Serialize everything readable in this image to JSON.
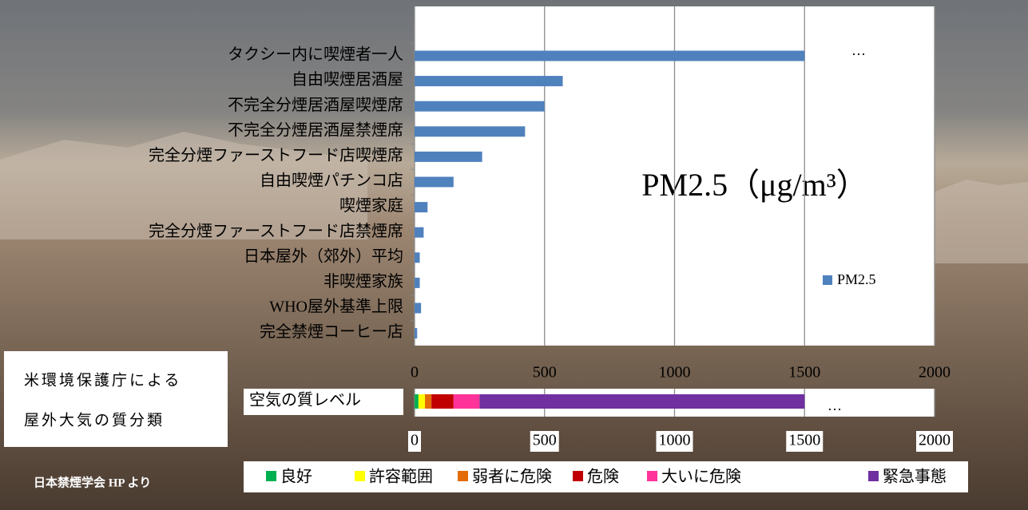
{
  "chart_data": [
    {
      "type": "bar",
      "orientation": "horizontal",
      "title": "PM2.5（μg/m³）",
      "categories": [
        "タクシー内に喫煙者一人",
        "自由喫煙居酒屋",
        "不完全分煙居酒屋喫煙席",
        "不完全分煙居酒屋禁煙席",
        "完全分煙ファーストフード店喫煙席",
        "自由喫煙パチンコ店",
        "喫煙家庭",
        "完全分煙ファーストフード店禁煙席",
        "日本屋外（郊外）平均",
        "非喫煙家族",
        "WHO屋外基準上限",
        "完全禁煙コーヒー店"
      ],
      "series": [
        {
          "name": "PM2.5",
          "color": "#4f81bd",
          "values": [
            1500,
            570,
            500,
            425,
            260,
            150,
            50,
            35,
            20,
            20,
            25,
            10
          ]
        }
      ],
      "annotation": "…",
      "xlim": [
        0,
        2000
      ],
      "xticks": [
        0,
        500,
        1000,
        1500,
        2000
      ],
      "grid": true,
      "legend": "right"
    },
    {
      "type": "stacked_bar",
      "orientation": "horizontal",
      "title": "空気の質レベル",
      "series": [
        {
          "name": "良好",
          "color": "#00b050",
          "values": [
            15
          ]
        },
        {
          "name": "許容範囲",
          "color": "#ffff00",
          "values": [
            25
          ]
        },
        {
          "name": "弱者に危険",
          "color": "#e36c09",
          "values": [
            25
          ]
        },
        {
          "name": "危険",
          "color": "#c00000",
          "values": [
            85
          ]
        },
        {
          "name": "大いに危険",
          "color": "#ff3399",
          "values": [
            100
          ]
        },
        {
          "name": "緊急事態",
          "color": "#7030a0",
          "values": [
            1250
          ]
        }
      ],
      "annotation": "…",
      "xlim": [
        0,
        2000
      ],
      "xticks": [
        0,
        500,
        1000,
        1500,
        2000
      ],
      "legend": "bottom"
    }
  ],
  "caption": {
    "lines": [
      "米環境保護庁による",
      "屋外大気の質分類"
    ],
    "credit": "日本禁煙学会 HP より"
  }
}
